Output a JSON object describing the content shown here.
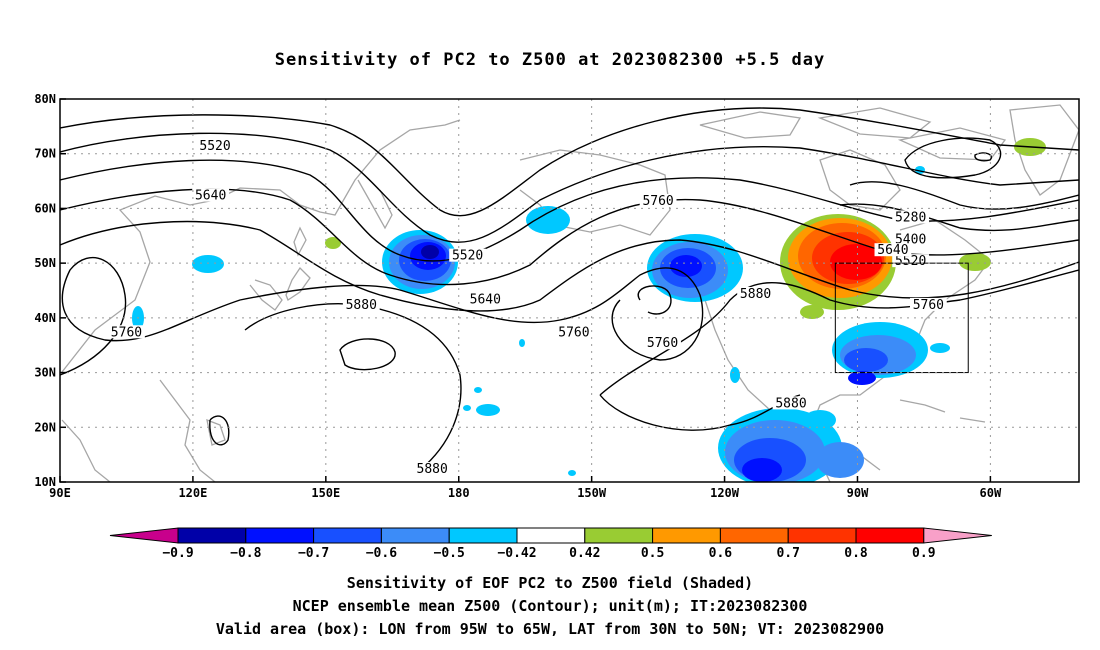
{
  "title": "Sensitivity of PC2 to Z500 at 2023082300 +5.5 day",
  "captions": [
    "Sensitivity of EOF PC2 to Z500 field (Shaded)",
    "NCEP ensemble mean Z500 (Contour); unit(m); IT:2023082300",
    "Valid area (box): LON from 95W to 65W, LAT from 30N to 50N; VT: 2023082900"
  ],
  "axes": {
    "lon_ticks": [
      "90E",
      "120E",
      "150E",
      "180",
      "150W",
      "120W",
      "90W",
      "60W"
    ],
    "lat_ticks": [
      "10N",
      "20N",
      "30N",
      "40N",
      "50N",
      "60N",
      "70N",
      "80N"
    ],
    "lon_range_deg_east": [
      90,
      320
    ],
    "lat_range": [
      10,
      80
    ],
    "grid": "dotted"
  },
  "contour_labels": [
    {
      "text": "5520",
      "lon": 125,
      "lat": 71
    },
    {
      "text": "5640",
      "lon": 124,
      "lat": 62
    },
    {
      "text": "5520",
      "lon": 182,
      "lat": 51
    },
    {
      "text": "5640",
      "lon": 186,
      "lat": 43
    },
    {
      "text": "5760",
      "lon": 105,
      "lat": 37
    },
    {
      "text": "5880",
      "lon": 158,
      "lat": 42
    },
    {
      "text": "5760",
      "lon": 206,
      "lat": 37
    },
    {
      "text": "5760",
      "lon": 225,
      "lat": 61
    },
    {
      "text": "5760",
      "lon": 226,
      "lat": 35
    },
    {
      "text": "5880",
      "lon": 247,
      "lat": 44
    },
    {
      "text": "5880",
      "lon": 255,
      "lat": 24
    },
    {
      "text": "5880",
      "lon": 174,
      "lat": 12
    },
    {
      "text": "5280",
      "lon": 282,
      "lat": 58
    },
    {
      "text": "5400",
      "lon": 282,
      "lat": 54
    },
    {
      "text": "5520",
      "lon": 282,
      "lat": 50
    },
    {
      "text": "5640",
      "lon": 278,
      "lat": 52
    },
    {
      "text": "5760",
      "lon": 286,
      "lat": 42
    }
  ],
  "valid_box": {
    "lon_min": 265,
    "lon_max": 295,
    "lat_min": 30,
    "lat_max": 50
  },
  "colorbar": {
    "labels": [
      "-0.9",
      "-0.8",
      "-0.7",
      "-0.6",
      "-0.5",
      "-0.42",
      "0.42",
      "0.5",
      "0.6",
      "0.7",
      "0.8",
      "0.9"
    ],
    "colors": [
      "#0000a8",
      "#0010ff",
      "#1850ff",
      "#3c8cf8",
      "#00c8ff",
      "#ffffff",
      "#99cc33",
      "#ff9900",
      "#ff6600",
      "#ff3300",
      "#ff0000"
    ],
    "low_extend_color": "#c8008c",
    "high_extend_color": "#f8a0c8"
  },
  "colors": {
    "coast": "#a6a6a6",
    "contour": "#000000"
  }
}
